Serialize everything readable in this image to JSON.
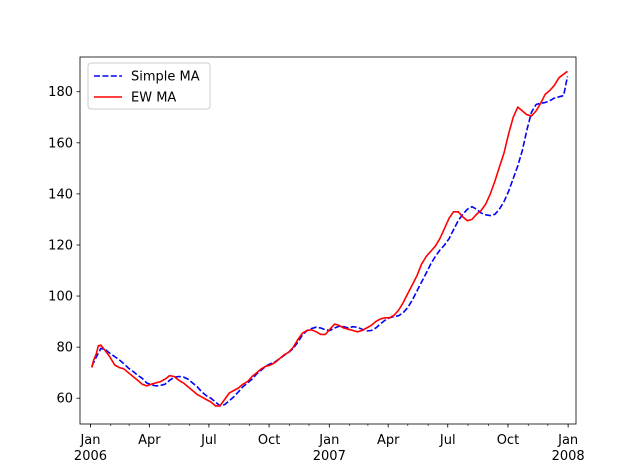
{
  "chart_data": {
    "type": "line",
    "title": "",
    "xlabel": "",
    "ylabel": "",
    "xlim": [
      "2005-12-16",
      "2008-01-13"
    ],
    "ylim": [
      49.9,
      193.6
    ],
    "grid": false,
    "legend_position": "upper-left",
    "x_ticks": [
      {
        "date": "2006-01-01",
        "label": "Jan",
        "sublabel": "2006"
      },
      {
        "date": "2006-04-01",
        "label": "Apr",
        "sublabel": ""
      },
      {
        "date": "2006-07-01",
        "label": "Jul",
        "sublabel": ""
      },
      {
        "date": "2006-10-01",
        "label": "Oct",
        "sublabel": ""
      },
      {
        "date": "2007-01-01",
        "label": "Jan",
        "sublabel": "2007"
      },
      {
        "date": "2007-04-01",
        "label": "Apr",
        "sublabel": ""
      },
      {
        "date": "2007-07-01",
        "label": "Jul",
        "sublabel": ""
      },
      {
        "date": "2007-10-01",
        "label": "Oct",
        "sublabel": ""
      },
      {
        "date": "2008-01-01",
        "label": "Jan",
        "sublabel": "2008"
      }
    ],
    "y_ticks": [
      60,
      80,
      100,
      120,
      140,
      160,
      180
    ],
    "series": [
      {
        "name": "Simple MA",
        "color": "#0000ff",
        "style": "dashed",
        "points": [
          [
            "2006-01-03",
            72.5
          ],
          [
            "2006-01-10",
            76.2
          ],
          [
            "2006-01-17",
            79.5
          ],
          [
            "2006-01-24",
            79.0
          ],
          [
            "2006-01-31",
            77.5
          ],
          [
            "2006-02-07",
            76.3
          ],
          [
            "2006-02-14",
            75.0
          ],
          [
            "2006-02-21",
            73.5
          ],
          [
            "2006-02-28",
            71.8
          ],
          [
            "2006-03-07",
            70.5
          ],
          [
            "2006-03-14",
            69.0
          ],
          [
            "2006-03-21",
            67.8
          ],
          [
            "2006-03-28",
            66.0
          ],
          [
            "2006-04-04",
            65.2
          ],
          [
            "2006-04-11",
            64.8
          ],
          [
            "2006-04-18",
            65.0
          ],
          [
            "2006-04-25",
            65.5
          ],
          [
            "2006-05-02",
            67.0
          ],
          [
            "2006-05-09",
            68.2
          ],
          [
            "2006-05-16",
            68.5
          ],
          [
            "2006-05-23",
            68.3
          ],
          [
            "2006-05-30",
            67.5
          ],
          [
            "2006-06-06",
            66.0
          ],
          [
            "2006-06-13",
            64.5
          ],
          [
            "2006-06-20",
            62.5
          ],
          [
            "2006-06-27",
            61.0
          ],
          [
            "2006-07-04",
            60.0
          ],
          [
            "2006-07-11",
            58.5
          ],
          [
            "2006-07-18",
            57.0
          ],
          [
            "2006-07-25",
            57.5
          ],
          [
            "2006-08-01",
            59.0
          ],
          [
            "2006-08-08",
            60.5
          ],
          [
            "2006-08-15",
            62.5
          ],
          [
            "2006-08-22",
            64.5
          ],
          [
            "2006-08-29",
            66.0
          ],
          [
            "2006-09-05",
            67.5
          ],
          [
            "2006-09-12",
            69.5
          ],
          [
            "2006-09-19",
            71.0
          ],
          [
            "2006-09-26",
            72.5
          ],
          [
            "2006-10-03",
            73.5
          ],
          [
            "2006-10-10",
            74.2
          ],
          [
            "2006-10-17",
            75.5
          ],
          [
            "2006-10-24",
            76.8
          ],
          [
            "2006-10-31",
            78.0
          ],
          [
            "2006-11-07",
            79.5
          ],
          [
            "2006-11-14",
            82.0
          ],
          [
            "2006-11-21",
            84.8
          ],
          [
            "2006-11-28",
            86.5
          ],
          [
            "2006-12-05",
            87.3
          ],
          [
            "2006-12-12",
            87.8
          ],
          [
            "2006-12-19",
            87.5
          ],
          [
            "2006-12-26",
            86.8
          ],
          [
            "2007-01-02",
            86.5
          ],
          [
            "2007-01-09",
            87.5
          ],
          [
            "2007-01-16",
            88.2
          ],
          [
            "2007-01-23",
            88.0
          ],
          [
            "2007-01-30",
            87.5
          ],
          [
            "2007-02-06",
            88.0
          ],
          [
            "2007-02-13",
            87.8
          ],
          [
            "2007-02-20",
            87.0
          ],
          [
            "2007-02-27",
            86.3
          ],
          [
            "2007-03-06",
            86.5
          ],
          [
            "2007-03-13",
            87.5
          ],
          [
            "2007-03-20",
            89.0
          ],
          [
            "2007-03-27",
            90.5
          ],
          [
            "2007-04-03",
            91.5
          ],
          [
            "2007-04-10",
            92.0
          ],
          [
            "2007-04-17",
            92.3
          ],
          [
            "2007-04-24",
            93.5
          ],
          [
            "2007-05-01",
            95.5
          ],
          [
            "2007-05-08",
            98.5
          ],
          [
            "2007-05-15",
            102.0
          ],
          [
            "2007-05-22",
            105.5
          ],
          [
            "2007-05-29",
            109.0
          ],
          [
            "2007-06-05",
            112.5
          ],
          [
            "2007-06-12",
            115.5
          ],
          [
            "2007-06-19",
            118.0
          ],
          [
            "2007-06-26",
            120.0
          ],
          [
            "2007-07-03",
            122.5
          ],
          [
            "2007-07-10",
            126.0
          ],
          [
            "2007-07-17",
            129.5
          ],
          [
            "2007-07-24",
            132.0
          ],
          [
            "2007-07-31",
            134.0
          ],
          [
            "2007-08-07",
            135.0
          ],
          [
            "2007-08-14",
            134.0
          ],
          [
            "2007-08-21",
            132.5
          ],
          [
            "2007-08-28",
            131.8
          ],
          [
            "2007-09-04",
            131.5
          ],
          [
            "2007-09-11",
            132.0
          ],
          [
            "2007-09-18",
            134.0
          ],
          [
            "2007-09-25",
            137.0
          ],
          [
            "2007-10-02",
            141.0
          ],
          [
            "2007-10-09",
            146.0
          ],
          [
            "2007-10-16",
            151.0
          ],
          [
            "2007-10-23",
            157.0
          ],
          [
            "2007-10-30",
            165.0
          ],
          [
            "2007-11-06",
            172.0
          ],
          [
            "2007-11-13",
            175.0
          ],
          [
            "2007-11-20",
            175.5
          ],
          [
            "2007-11-27",
            175.8
          ],
          [
            "2007-12-04",
            176.5
          ],
          [
            "2007-12-11",
            177.5
          ],
          [
            "2007-12-18",
            178.0
          ],
          [
            "2007-12-25",
            178.5
          ],
          [
            "2007-12-31",
            186.0
          ]
        ]
      },
      {
        "name": "EW MA",
        "color": "#ff0000",
        "style": "solid",
        "points": [
          [
            "2006-01-03",
            72.0
          ],
          [
            "2006-01-06",
            75.0
          ],
          [
            "2006-01-10",
            77.5
          ],
          [
            "2006-01-13",
            80.5
          ],
          [
            "2006-01-17",
            80.8
          ],
          [
            "2006-01-24",
            78.5
          ],
          [
            "2006-01-31",
            76.0
          ],
          [
            "2006-02-07",
            73.0
          ],
          [
            "2006-02-14",
            72.0
          ],
          [
            "2006-02-21",
            71.5
          ],
          [
            "2006-02-28",
            70.0
          ],
          [
            "2006-03-07",
            68.5
          ],
          [
            "2006-03-14",
            67.0
          ],
          [
            "2006-03-21",
            65.5
          ],
          [
            "2006-03-28",
            64.8
          ],
          [
            "2006-04-04",
            65.5
          ],
          [
            "2006-04-11",
            66.0
          ],
          [
            "2006-04-18",
            66.5
          ],
          [
            "2006-04-25",
            67.5
          ],
          [
            "2006-05-02",
            68.8
          ],
          [
            "2006-05-09",
            68.5
          ],
          [
            "2006-05-16",
            67.0
          ],
          [
            "2006-05-23",
            66.0
          ],
          [
            "2006-05-30",
            64.5
          ],
          [
            "2006-06-06",
            63.0
          ],
          [
            "2006-06-13",
            61.5
          ],
          [
            "2006-06-20",
            60.5
          ],
          [
            "2006-06-27",
            59.5
          ],
          [
            "2006-07-04",
            58.5
          ],
          [
            "2006-07-11",
            57.0
          ],
          [
            "2006-07-18",
            57.0
          ],
          [
            "2006-07-25",
            59.5
          ],
          [
            "2006-08-01",
            62.0
          ],
          [
            "2006-08-08",
            63.0
          ],
          [
            "2006-08-15",
            64.0
          ],
          [
            "2006-08-22",
            65.5
          ],
          [
            "2006-08-29",
            66.5
          ],
          [
            "2006-09-05",
            68.5
          ],
          [
            "2006-09-12",
            70.0
          ],
          [
            "2006-09-19",
            71.5
          ],
          [
            "2006-09-26",
            72.5
          ],
          [
            "2006-10-03",
            73.0
          ],
          [
            "2006-10-10",
            74.0
          ],
          [
            "2006-10-17",
            75.5
          ],
          [
            "2006-10-24",
            77.0
          ],
          [
            "2006-10-31",
            78.0
          ],
          [
            "2006-11-07",
            80.0
          ],
          [
            "2006-11-14",
            83.0
          ],
          [
            "2006-11-21",
            85.5
          ],
          [
            "2006-11-28",
            86.5
          ],
          [
            "2006-12-05",
            86.8
          ],
          [
            "2006-12-12",
            86.0
          ],
          [
            "2006-12-19",
            85.0
          ],
          [
            "2006-12-26",
            85.0
          ],
          [
            "2007-01-02",
            87.0
          ],
          [
            "2007-01-09",
            89.0
          ],
          [
            "2007-01-16",
            88.5
          ],
          [
            "2007-01-23",
            87.5
          ],
          [
            "2007-01-30",
            87.0
          ],
          [
            "2007-02-06",
            86.5
          ],
          [
            "2007-02-13",
            86.0
          ],
          [
            "2007-02-20",
            86.5
          ],
          [
            "2007-02-27",
            87.5
          ],
          [
            "2007-03-06",
            88.5
          ],
          [
            "2007-03-13",
            90.0
          ],
          [
            "2007-03-20",
            91.0
          ],
          [
            "2007-03-27",
            91.5
          ],
          [
            "2007-04-03",
            91.5
          ],
          [
            "2007-04-10",
            92.5
          ],
          [
            "2007-04-17",
            94.5
          ],
          [
            "2007-04-24",
            97.5
          ],
          [
            "2007-05-01",
            101.0
          ],
          [
            "2007-05-08",
            104.5
          ],
          [
            "2007-05-15",
            108.0
          ],
          [
            "2007-05-22",
            112.5
          ],
          [
            "2007-05-29",
            115.5
          ],
          [
            "2007-06-05",
            117.5
          ],
          [
            "2007-06-12",
            119.5
          ],
          [
            "2007-06-19",
            122.5
          ],
          [
            "2007-06-26",
            126.5
          ],
          [
            "2007-07-03",
            130.5
          ],
          [
            "2007-07-10",
            133.0
          ],
          [
            "2007-07-17",
            133.0
          ],
          [
            "2007-07-24",
            131.0
          ],
          [
            "2007-07-31",
            129.5
          ],
          [
            "2007-08-07",
            130.0
          ],
          [
            "2007-08-14",
            132.0
          ],
          [
            "2007-08-21",
            133.5
          ],
          [
            "2007-08-28",
            136.0
          ],
          [
            "2007-09-04",
            140.0
          ],
          [
            "2007-09-11",
            145.0
          ],
          [
            "2007-09-18",
            150.5
          ],
          [
            "2007-09-25",
            156.0
          ],
          [
            "2007-10-02",
            163.5
          ],
          [
            "2007-10-09",
            170.0
          ],
          [
            "2007-10-16",
            174.0
          ],
          [
            "2007-10-23",
            172.5
          ],
          [
            "2007-10-30",
            171.0
          ],
          [
            "2007-11-06",
            170.5
          ],
          [
            "2007-11-13",
            172.5
          ],
          [
            "2007-11-20",
            175.5
          ],
          [
            "2007-11-27",
            179.0
          ],
          [
            "2007-12-04",
            180.5
          ],
          [
            "2007-12-11",
            182.5
          ],
          [
            "2007-12-18",
            185.5
          ],
          [
            "2007-12-31",
            188.0
          ]
        ]
      }
    ]
  }
}
